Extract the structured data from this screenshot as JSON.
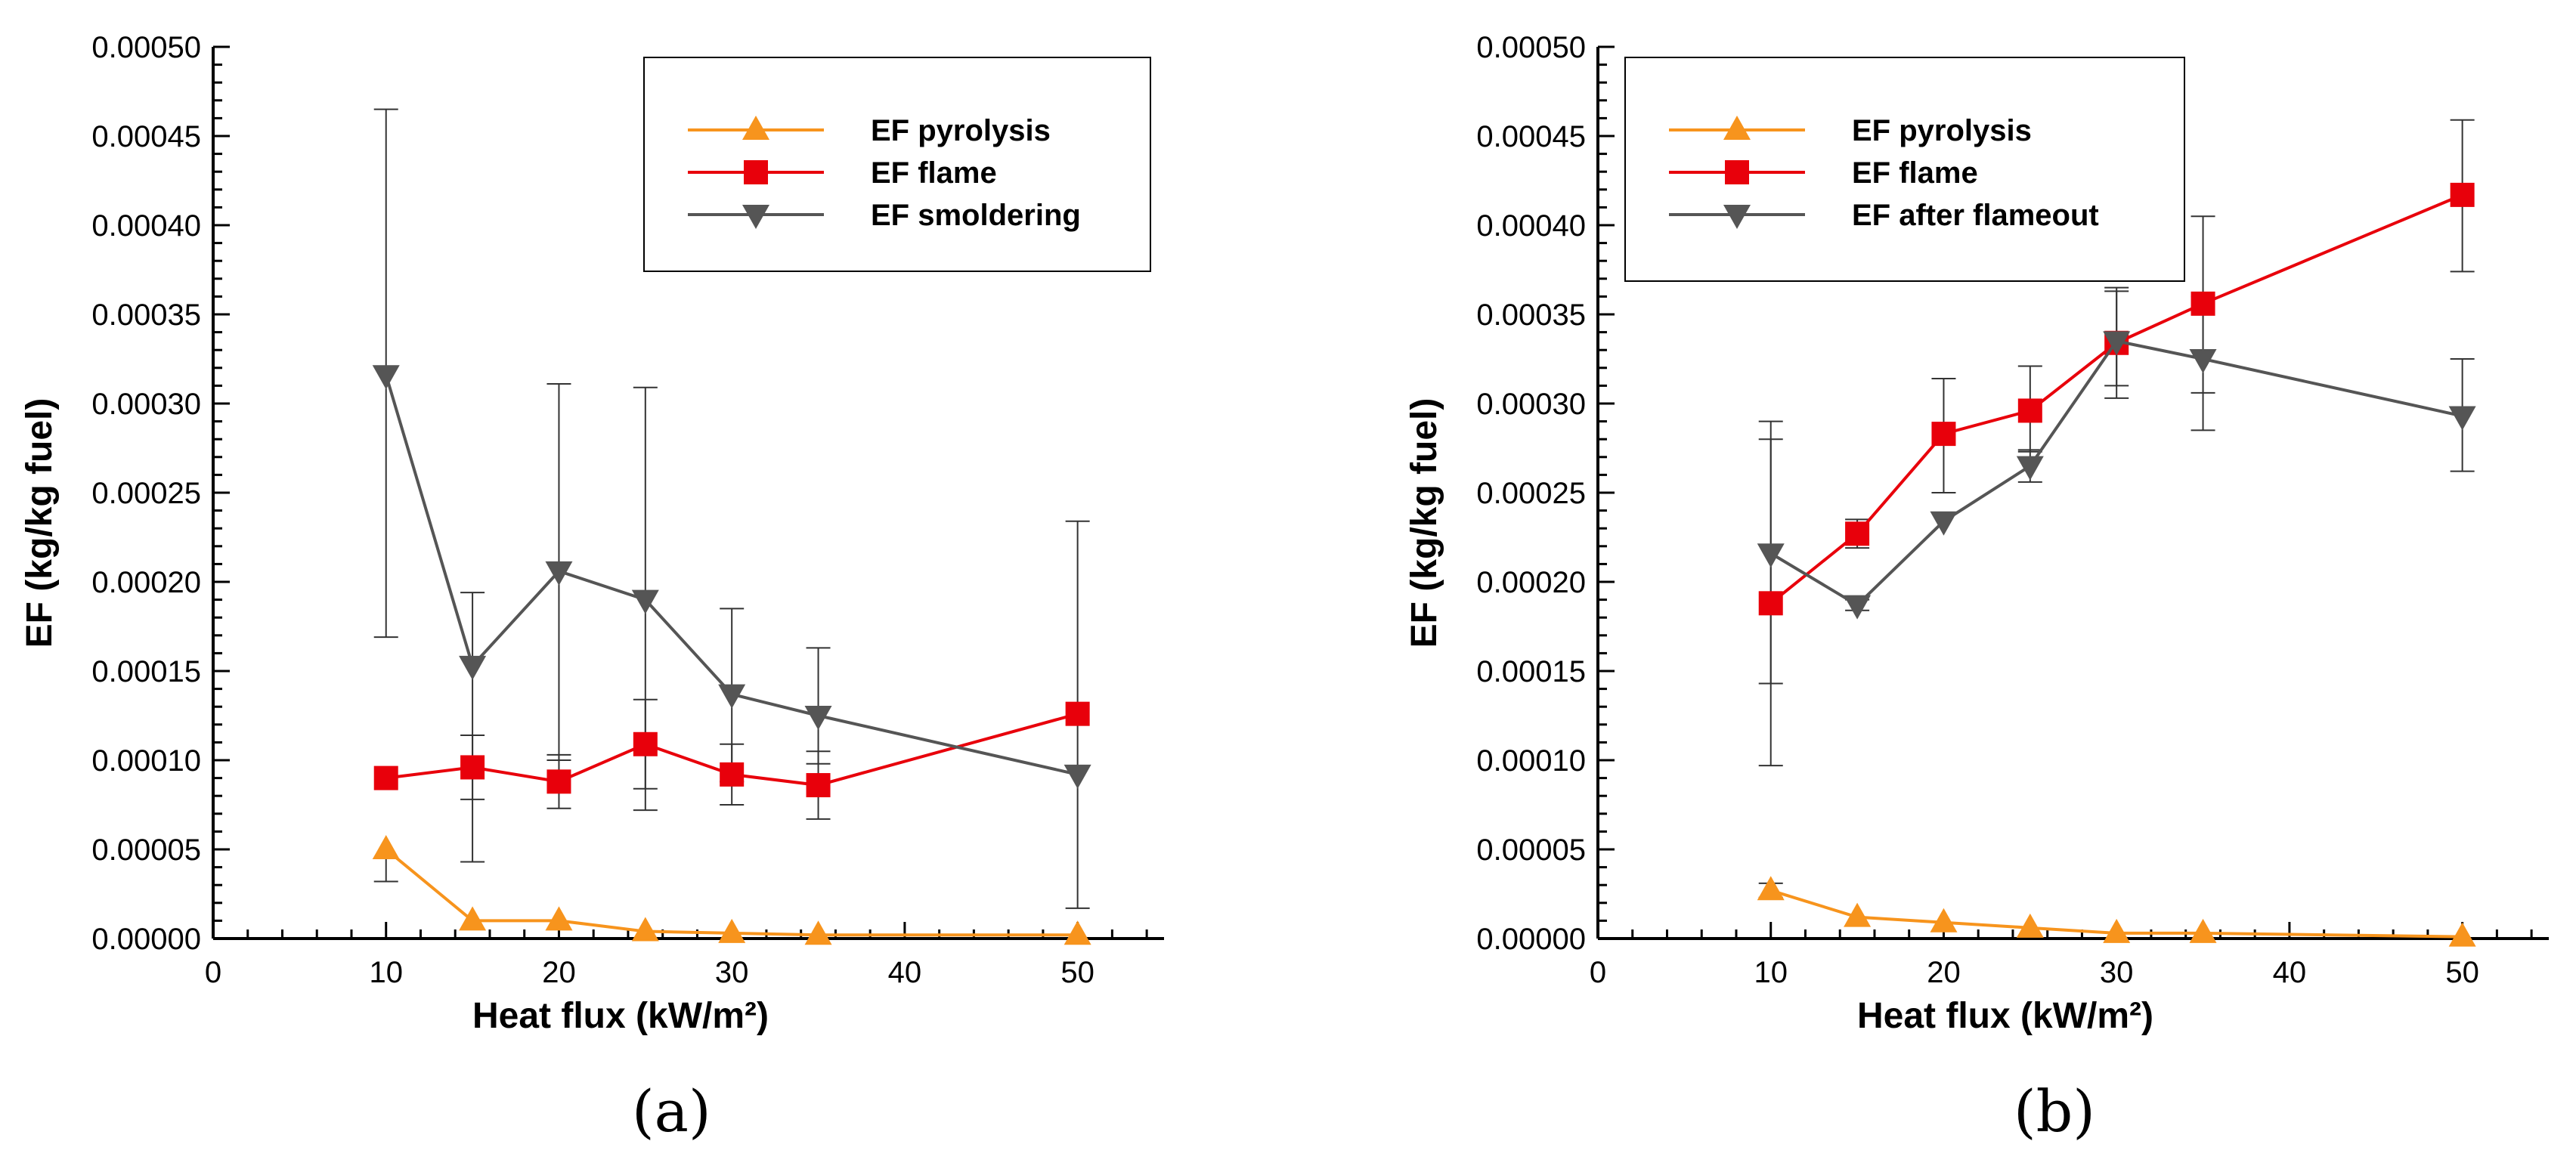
{
  "chart_data": [
    {
      "type": "line",
      "panel_label": "(a)",
      "xlabel": "Heat flux (kW/m²)",
      "ylabel": "EF (kg/kg fuel)",
      "xlim": [
        0,
        55
      ],
      "ylim": [
        0,
        0.0005
      ],
      "xticks": [
        "0",
        "10",
        "20",
        "30",
        "40",
        "50"
      ],
      "xtick_values": [
        0,
        10,
        20,
        30,
        40,
        50
      ],
      "yticks": [
        "0.00000",
        "0.00005",
        "0.00010",
        "0.00015",
        "0.00020",
        "0.00025",
        "0.00030",
        "0.00035",
        "0.00040",
        "0.00045",
        "0.00050"
      ],
      "ytick_values": [
        0,
        5e-05,
        0.0001,
        0.00015,
        0.0002,
        0.00025,
        0.0003,
        0.00035,
        0.0004,
        0.00045,
        0.0005
      ],
      "legend_position": "top-right",
      "series": [
        {
          "name": "EF pyrolysis",
          "color": "#f7941d",
          "marker": "triangle-up",
          "x": [
            10,
            15,
            20,
            25,
            30,
            35,
            50
          ],
          "y": [
            5e-05,
            1e-05,
            1e-05,
            4e-06,
            3e-06,
            2e-06,
            2e-06
          ],
          "err_low": [
            3.2e-05,
            null,
            null,
            null,
            null,
            null,
            null
          ],
          "err_high": [
            null,
            null,
            null,
            null,
            null,
            null,
            null
          ]
        },
        {
          "name": "EF flame",
          "color": "#e8000b",
          "marker": "square",
          "x": [
            10,
            15,
            20,
            25,
            30,
            35,
            50
          ],
          "y": [
            9e-05,
            9.6e-05,
            8.8e-05,
            0.000109,
            9.2e-05,
            8.6e-05,
            0.000126
          ],
          "err_low": [
            null,
            7.8e-05,
            7.3e-05,
            8.4e-05,
            7.5e-05,
            6.7e-05,
            null
          ],
          "err_high": [
            null,
            0.000114,
            0.000103,
            0.000134,
            0.000109,
            0.000105,
            null
          ]
        },
        {
          "name": "EF smoldering",
          "color": "#555555",
          "marker": "triangle-down",
          "x": [
            10,
            15,
            20,
            25,
            30,
            35,
            50
          ],
          "y": [
            0.000316,
            0.000153,
            0.000206,
            0.00019,
            0.000137,
            0.000125,
            9.2e-05
          ],
          "err_low": [
            0.000169,
            4.3e-05,
            0.0001,
            7.2e-05,
            8.8e-05,
            9.8e-05,
            1.7e-05
          ],
          "err_high": [
            0.000465,
            0.000194,
            0.000311,
            0.000309,
            0.000185,
            0.000163,
            0.000234
          ]
        }
      ]
    },
    {
      "type": "line",
      "panel_label": "(b)",
      "xlabel": "Heat flux (kW/m²)",
      "ylabel": "EF (kg/kg fuel)",
      "xlim": [
        0,
        55
      ],
      "ylim": [
        0,
        0.0005
      ],
      "xticks": [
        "0",
        "10",
        "20",
        "30",
        "40",
        "50"
      ],
      "xtick_values": [
        0,
        10,
        20,
        30,
        40,
        50
      ],
      "yticks": [
        "0.00000",
        "0.00005",
        "0.00010",
        "0.00015",
        "0.00020",
        "0.00025",
        "0.00030",
        "0.00035",
        "0.00040",
        "0.00045",
        "0.00050"
      ],
      "ytick_values": [
        0,
        5e-05,
        0.0001,
        0.00015,
        0.0002,
        0.00025,
        0.0003,
        0.00035,
        0.0004,
        0.00045,
        0.0005
      ],
      "legend_position": "top-left",
      "series": [
        {
          "name": "EF pyrolysis",
          "color": "#f7941d",
          "marker": "triangle-up",
          "x": [
            10,
            15,
            20,
            25,
            30,
            35,
            50
          ],
          "y": [
            2.7e-05,
            1.2e-05,
            9e-06,
            6e-06,
            3e-06,
            3e-06,
            1e-06
          ],
          "err_low": [
            2.3e-05,
            null,
            null,
            null,
            null,
            null,
            null
          ],
          "err_high": [
            3.1e-05,
            null,
            null,
            null,
            null,
            null,
            null
          ]
        },
        {
          "name": "EF flame",
          "color": "#e8000b",
          "marker": "square",
          "x": [
            10,
            15,
            20,
            25,
            30,
            35,
            50
          ],
          "y": [
            0.000188,
            0.000227,
            0.000283,
            0.000296,
            0.000334,
            0.000356,
            0.000417
          ],
          "err_low": [
            9.7e-05,
            0.000219,
            0.00025,
            0.000273,
            0.000303,
            0.000306,
            0.000374
          ],
          "err_high": [
            0.00028,
            0.000235,
            0.000314,
            0.000321,
            0.000363,
            0.000405,
            0.000459
          ]
        },
        {
          "name": "EF after flameout",
          "color": "#555555",
          "marker": "triangle-down",
          "x": [
            10,
            15,
            20,
            25,
            30,
            35,
            50
          ],
          "y": [
            0.000216,
            0.000187,
            0.000234,
            0.000265,
            0.000335,
            0.000325,
            0.000293
          ],
          "err_low": [
            0.000143,
            0.000184,
            null,
            0.000256,
            0.00031,
            0.000285,
            0.000262
          ],
          "err_high": [
            0.00029,
            0.00019,
            null,
            0.000274,
            0.000365,
            0.00036,
            0.000325
          ]
        }
      ]
    }
  ]
}
